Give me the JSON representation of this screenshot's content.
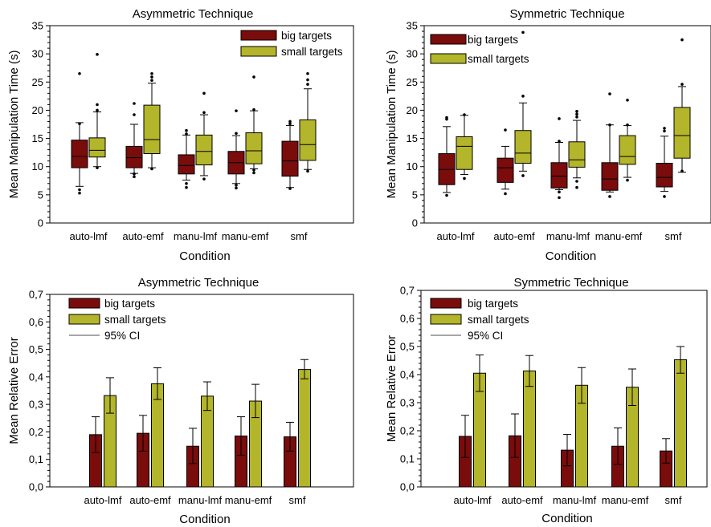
{
  "colors": {
    "big": "#7a0c0c",
    "small": "#b3b52a",
    "ci_line": "#888888",
    "axis": "#000000"
  },
  "chart_data": [
    {
      "type": "boxplot",
      "title": "Asymmetric Technique",
      "xlabel": "Condition",
      "ylabel": "Mean Manipulation Time (s)",
      "ylim": [
        0,
        35
      ],
      "yticks": [
        "0",
        "5",
        "10",
        "15",
        "20",
        "25",
        "30",
        "35"
      ],
      "categories": [
        "auto-lmf",
        "auto-emf",
        "manu-lmf",
        "manu-emf",
        "smf"
      ],
      "legend": [
        "big targets",
        "small targets"
      ],
      "legend_position": "top-right",
      "series": [
        {
          "name": "big targets",
          "boxes": [
            {
              "p10": 6.5,
              "q1": 9.8,
              "median": 11.8,
              "q3": 14.7,
              "p90": 17.8,
              "outliers": [
                5.3,
                5.9,
                17.6,
                26.5
              ]
            },
            {
              "p10": 8.8,
              "q1": 9.8,
              "median": 11.6,
              "q3": 13.6,
              "p90": 17.5,
              "outliers": [
                8.2,
                8.7,
                19.2,
                21.2
              ]
            },
            {
              "p10": 7.6,
              "q1": 8.7,
              "median": 10.2,
              "q3": 12.1,
              "p90": 15.6,
              "outliers": [
                6.3,
                7.0,
                15.8,
                16.4
              ]
            },
            {
              "p10": 7.0,
              "q1": 8.7,
              "median": 10.7,
              "q3": 12.7,
              "p90": 15.5,
              "outliers": [
                6.2,
                6.7,
                15.9,
                19.9
              ]
            },
            {
              "p10": 6.3,
              "q1": 8.3,
              "median": 11.0,
              "q3": 14.5,
              "p90": 17.3,
              "outliers": [
                6.1,
                17.6,
                18.0
              ]
            }
          ]
        },
        {
          "name": "small targets",
          "boxes": [
            {
              "p10": 10.0,
              "q1": 11.7,
              "median": 12.9,
              "q3": 15.1,
              "p90": 19.7,
              "outliers": [
                9.8,
                20.0,
                21.0,
                29.9
              ]
            },
            {
              "p10": 9.8,
              "q1": 12.3,
              "median": 14.8,
              "q3": 20.9,
              "p90": 24.8,
              "outliers": [
                9.6,
                25.3,
                25.9,
                26.5
              ]
            },
            {
              "p10": 8.4,
              "q1": 10.3,
              "median": 12.7,
              "q3": 15.6,
              "p90": 19.2,
              "outliers": [
                7.8,
                19.6,
                23.0
              ]
            },
            {
              "p10": 9.6,
              "q1": 10.5,
              "median": 12.8,
              "q3": 16.0,
              "p90": 19.9,
              "outliers": [
                8.9,
                9.4,
                20.1,
                25.9
              ]
            },
            {
              "p10": 9.5,
              "q1": 11.1,
              "median": 13.9,
              "q3": 18.3,
              "p90": 23.8,
              "outliers": [
                9.2,
                24.6,
                25.4,
                26.5
              ]
            }
          ]
        }
      ]
    },
    {
      "type": "boxplot",
      "title": "Symmetric Technique",
      "xlabel": "Condition",
      "ylabel": "Mean Manipulation Time (s)",
      "ylim": [
        0,
        35
      ],
      "yticks": [
        "0",
        "5",
        "10",
        "15",
        "20",
        "25",
        "30",
        "35"
      ],
      "categories": [
        "auto-lmf",
        "auto-emf",
        "manu-lmf",
        "manu-emf",
        "smf"
      ],
      "legend": [
        "big targets",
        "small targets"
      ],
      "legend_position": "top-left",
      "series": [
        {
          "name": "big targets",
          "boxes": [
            {
              "p10": 5.4,
              "q1": 6.8,
              "median": 9.5,
              "q3": 12.3,
              "p90": 17.1,
              "outliers": [
                4.9,
                18.4,
                18.7
              ]
            },
            {
              "p10": 6.0,
              "q1": 7.2,
              "median": 9.8,
              "q3": 11.5,
              "p90": 13.6,
              "outliers": [
                5.2,
                16.5
              ]
            },
            {
              "p10": 5.9,
              "q1": 6.2,
              "median": 8.3,
              "q3": 10.7,
              "p90": 14.3,
              "outliers": [
                4.5,
                5.5,
                14.5,
                18.5
              ]
            },
            {
              "p10": 5.5,
              "q1": 5.8,
              "median": 7.8,
              "q3": 10.7,
              "p90": 17.4,
              "outliers": [
                4.7,
                17.4,
                22.9
              ]
            },
            {
              "p10": 5.6,
              "q1": 6.4,
              "median": 8.1,
              "q3": 10.6,
              "p90": 15.4,
              "outliers": [
                4.7,
                16.3,
                16.8
              ]
            }
          ]
        },
        {
          "name": "small targets",
          "boxes": [
            {
              "p10": 8.6,
              "q1": 9.5,
              "median": 13.6,
              "q3": 15.3,
              "p90": 19.1,
              "outliers": [
                7.9,
                19.2
              ]
            },
            {
              "p10": 9.2,
              "q1": 10.6,
              "median": 12.4,
              "q3": 16.4,
              "p90": 21.3,
              "outliers": [
                8.4,
                22.5,
                33.8
              ]
            },
            {
              "p10": 8.0,
              "q1": 9.9,
              "median": 11.2,
              "q3": 14.4,
              "p90": 18.2,
              "outliers": [
                6.3,
                7.4,
                18.8,
                19.3,
                19.8
              ]
            },
            {
              "p10": 8.1,
              "q1": 10.4,
              "median": 11.8,
              "q3": 15.5,
              "p90": 17.3,
              "outliers": [
                7.6,
                17.4,
                21.8
              ]
            },
            {
              "p10": 9.0,
              "q1": 11.5,
              "median": 15.5,
              "q3": 20.5,
              "p90": 24.2,
              "outliers": [
                9.2,
                24.6,
                32.5
              ]
            }
          ]
        }
      ]
    },
    {
      "type": "bar",
      "title": "Asymmetric Technique",
      "xlabel": "Condition",
      "ylabel": "Mean Relative Error",
      "ylim": [
        0,
        0.7
      ],
      "yticks": [
        "0,0",
        "0,1",
        "0,2",
        "0,3",
        "0,4",
        "0,5",
        "0,6",
        "0,7"
      ],
      "categories": [
        "auto-lmf",
        "auto-emf",
        "manu-lmf",
        "manu-emf",
        "smf"
      ],
      "legend": [
        "big targets",
        "small targets",
        "95% CI"
      ],
      "legend_position": "top-left",
      "series": [
        {
          "name": "big targets",
          "values": [
            0.19,
            0.195,
            0.148,
            0.185,
            0.182
          ],
          "ci_low": [
            0.125,
            0.13,
            0.085,
            0.115,
            0.13
          ],
          "ci_high": [
            0.255,
            0.26,
            0.213,
            0.255,
            0.235
          ]
        },
        {
          "name": "small targets",
          "values": [
            0.332,
            0.375,
            0.33,
            0.312,
            0.427
          ],
          "ci_low": [
            0.268,
            0.318,
            0.278,
            0.252,
            0.393
          ],
          "ci_high": [
            0.397,
            0.433,
            0.382,
            0.373,
            0.463
          ]
        }
      ]
    },
    {
      "type": "bar",
      "title": "Symmetric Technique",
      "xlabel": "Condition",
      "ylabel": "Mean Relative Error",
      "ylim": [
        0,
        0.7
      ],
      "yticks": [
        "0,0",
        "0,1",
        "0,2",
        "0,3",
        "0,4",
        "0,5",
        "0,6",
        "0,7"
      ],
      "categories": [
        "auto-lmf",
        "auto-emf",
        "manu-lmf",
        "manu-emf",
        "smf"
      ],
      "legend": [
        "big targets",
        "small targets",
        "95% CI"
      ],
      "legend_position": "top-left",
      "series": [
        {
          "name": "big targets",
          "values": [
            0.18,
            0.182,
            0.131,
            0.145,
            0.128
          ],
          "ci_low": [
            0.105,
            0.105,
            0.075,
            0.08,
            0.085
          ],
          "ci_high": [
            0.255,
            0.26,
            0.187,
            0.21,
            0.172
          ]
        },
        {
          "name": "small targets",
          "values": [
            0.405,
            0.413,
            0.362,
            0.355,
            0.453
          ],
          "ci_low": [
            0.34,
            0.358,
            0.298,
            0.29,
            0.405
          ],
          "ci_high": [
            0.47,
            0.468,
            0.425,
            0.42,
            0.5
          ]
        }
      ]
    }
  ]
}
